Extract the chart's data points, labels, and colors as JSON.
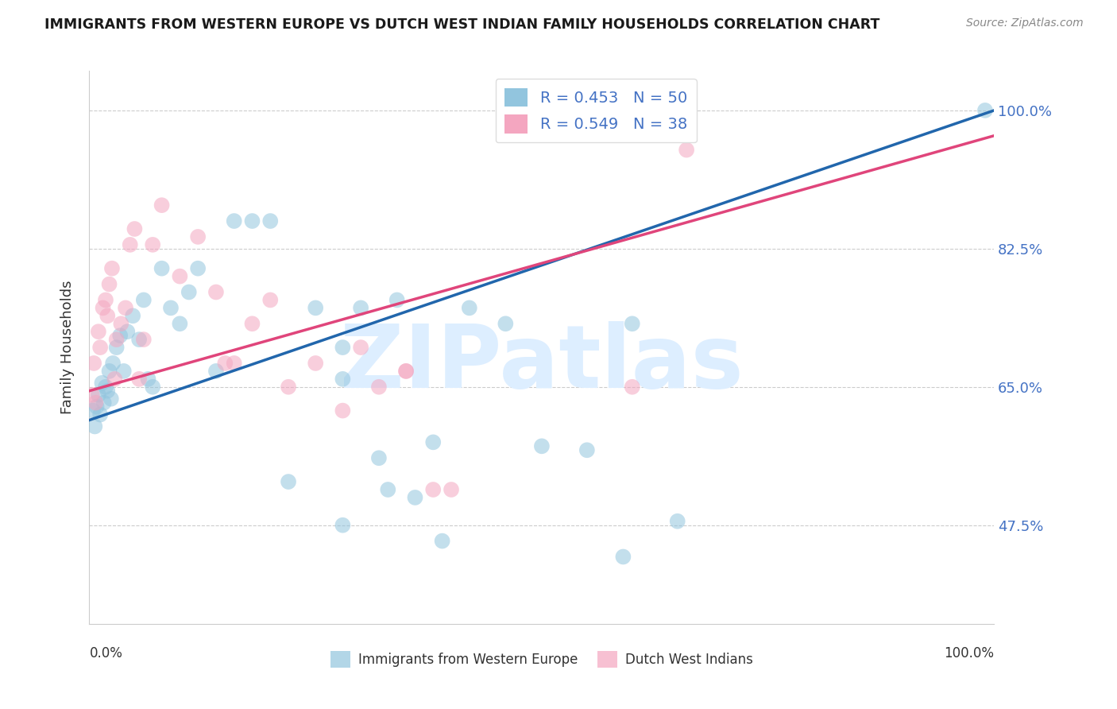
{
  "title": "IMMIGRANTS FROM WESTERN EUROPE VS DUTCH WEST INDIAN FAMILY HOUSEHOLDS CORRELATION CHART",
  "source": "Source: ZipAtlas.com",
  "ylabel": "Family Households",
  "yticks": [
    0.475,
    0.65,
    0.825,
    1.0
  ],
  "ytick_labels": [
    "47.5%",
    "65.0%",
    "82.5%",
    "100.0%"
  ],
  "xlim": [
    0.0,
    1.0
  ],
  "ylim": [
    0.35,
    1.05
  ],
  "blue_R": 0.453,
  "blue_N": 50,
  "pink_R": 0.549,
  "pink_N": 38,
  "blue_color": "#92c5de",
  "pink_color": "#f4a6c0",
  "blue_line_color": "#2166ac",
  "pink_line_color": "#e0457b",
  "legend_label_blue": "Immigrants from Western Europe",
  "legend_label_pink": "Dutch West Indians",
  "watermark_zip": "ZIP",
  "watermark_atlas": "atlas",
  "watermark_color": "#ddeeff",
  "blue_scatter_x": [
    0.004,
    0.006,
    0.008,
    0.01,
    0.012,
    0.014,
    0.016,
    0.018,
    0.02,
    0.022,
    0.024,
    0.026,
    0.03,
    0.034,
    0.038,
    0.042,
    0.048,
    0.055,
    0.06,
    0.065,
    0.07,
    0.08,
    0.09,
    0.1,
    0.11,
    0.12,
    0.14,
    0.16,
    0.18,
    0.2,
    0.22,
    0.25,
    0.28,
    0.32,
    0.28,
    0.3,
    0.34,
    0.38,
    0.42,
    0.46,
    0.5,
    0.55,
    0.6,
    0.65,
    0.28,
    0.33,
    0.36,
    0.39,
    0.59,
    0.99
  ],
  "blue_scatter_y": [
    0.62,
    0.6,
    0.625,
    0.64,
    0.615,
    0.655,
    0.63,
    0.65,
    0.645,
    0.67,
    0.635,
    0.68,
    0.7,
    0.715,
    0.67,
    0.72,
    0.74,
    0.71,
    0.76,
    0.66,
    0.65,
    0.8,
    0.75,
    0.73,
    0.77,
    0.8,
    0.67,
    0.86,
    0.86,
    0.86,
    0.53,
    0.75,
    0.7,
    0.56,
    0.66,
    0.75,
    0.76,
    0.58,
    0.75,
    0.73,
    0.575,
    0.57,
    0.73,
    0.48,
    0.475,
    0.52,
    0.51,
    0.455,
    0.435,
    1.0
  ],
  "pink_scatter_x": [
    0.003,
    0.005,
    0.007,
    0.01,
    0.012,
    0.015,
    0.018,
    0.02,
    0.022,
    0.025,
    0.028,
    0.03,
    0.035,
    0.04,
    0.045,
    0.05,
    0.055,
    0.06,
    0.07,
    0.08,
    0.1,
    0.12,
    0.14,
    0.16,
    0.18,
    0.2,
    0.22,
    0.25,
    0.3,
    0.35,
    0.4,
    0.15,
    0.28,
    0.32,
    0.35,
    0.38,
    0.6,
    0.66
  ],
  "pink_scatter_y": [
    0.64,
    0.68,
    0.63,
    0.72,
    0.7,
    0.75,
    0.76,
    0.74,
    0.78,
    0.8,
    0.66,
    0.71,
    0.73,
    0.75,
    0.83,
    0.85,
    0.66,
    0.71,
    0.83,
    0.88,
    0.79,
    0.84,
    0.77,
    0.68,
    0.73,
    0.76,
    0.65,
    0.68,
    0.7,
    0.67,
    0.52,
    0.68,
    0.62,
    0.65,
    0.67,
    0.52,
    0.65,
    0.95
  ],
  "blue_line_y_start": 0.608,
  "blue_line_y_end": 1.0,
  "pink_line_y_start": 0.645,
  "pink_line_y_end": 0.968
}
